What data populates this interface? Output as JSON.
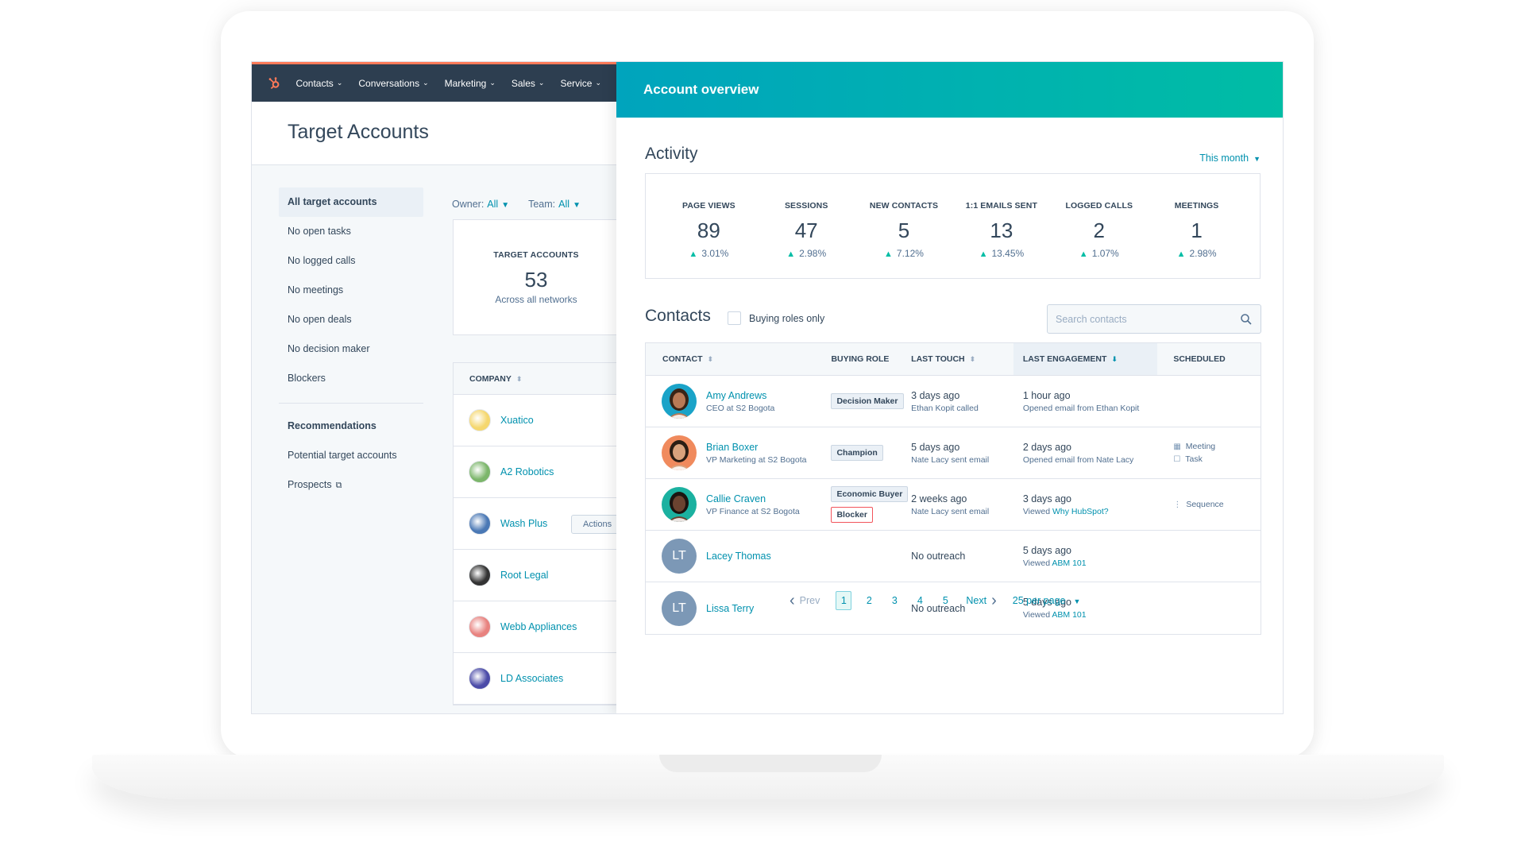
{
  "colors": {
    "accent": "#0091ae",
    "nav_bg": "#2d3e50",
    "brand_orange": "#ff7a59",
    "header_gradient": [
      "#00a4bd",
      "#00bda5"
    ],
    "up_arrow": "#00bda5",
    "blocker_border": "#f2545b"
  },
  "topnav": {
    "items": [
      {
        "label": "Contacts"
      },
      {
        "label": "Conversations"
      },
      {
        "label": "Marketing"
      },
      {
        "label": "Sales"
      },
      {
        "label": "Service"
      }
    ]
  },
  "target_accounts": {
    "title": "Target Accounts",
    "sidebar": {
      "items": [
        {
          "label": "All target accounts",
          "active": true
        },
        {
          "label": "No open tasks"
        },
        {
          "label": "No logged calls"
        },
        {
          "label": "No meetings"
        },
        {
          "label": "No open deals"
        },
        {
          "label": "No decision maker"
        },
        {
          "label": "Blockers"
        }
      ],
      "recommendations_heading": "Recommendations",
      "recommendations": [
        {
          "label": "Potential target accounts"
        },
        {
          "label": "Prospects",
          "icon": "external-link-icon"
        }
      ]
    },
    "filters": {
      "owner_label": "Owner:",
      "owner_value": "All",
      "team_label": "Team:",
      "team_value": "All"
    },
    "summary": {
      "label": "TARGET ACCOUNTS",
      "value": "53",
      "sub": "Across all networks"
    },
    "company_table": {
      "header": "COMPANY",
      "actions_label": "Actions",
      "rows": [
        {
          "name": "Xuatico",
          "color": "#f5d76e"
        },
        {
          "name": "A2 Robotics",
          "color": "#7cb66b"
        },
        {
          "name": "Wash Plus",
          "color": "#4a78b5"
        },
        {
          "name": "Root Legal",
          "color": "#333333"
        },
        {
          "name": "Webb Appliances",
          "color": "#e8827f"
        },
        {
          "name": "LD Associates",
          "color": "#4b4ba8"
        }
      ]
    }
  },
  "overview": {
    "title": "Account overview",
    "activity": {
      "title": "Activity",
      "range": "This month",
      "stats": [
        {
          "label": "PAGE VIEWS",
          "value": "89",
          "change": "3.01%"
        },
        {
          "label": "SESSIONS",
          "value": "47",
          "change": "2.98%"
        },
        {
          "label": "NEW CONTACTS",
          "value": "5",
          "change": "7.12%"
        },
        {
          "label": "1:1 EMAILS SENT",
          "value": "13",
          "change": "13.45%"
        },
        {
          "label": "LOGGED CALLS",
          "value": "2",
          "change": "1.07%"
        },
        {
          "label": "MEETINGS",
          "value": "1",
          "change": "2.98%"
        }
      ]
    },
    "contacts": {
      "title": "Contacts",
      "buying_roles_label": "Buying roles only",
      "search_placeholder": "Search contacts",
      "columns": {
        "contact": "CONTACT",
        "buying_role": "BUYING ROLE",
        "last_touch": "LAST TOUCH",
        "last_engagement": "LAST ENGAGEMENT",
        "scheduled": "SCHEDULED"
      },
      "rows": [
        {
          "name": "Amy Andrews",
          "title": "CEO at S2 Bogota",
          "avatar": {
            "type": "photo",
            "bg": "#1aa3c8",
            "skin": "#b97a56",
            "hair": "#3a2416"
          },
          "roles": [
            "Decision Maker"
          ],
          "blocker": "",
          "touch_main": "3 days ago",
          "touch_sub": "Ethan Kopit called",
          "engage_main": "1 hour ago",
          "engage_sub": "Opened email from Ethan Kopit",
          "engage_link": "",
          "scheduled": []
        },
        {
          "name": "Brian Boxer",
          "title": "VP Marketing at S2 Bogota",
          "avatar": {
            "type": "photo",
            "bg": "#f08a5d",
            "skin": "#d9a27d",
            "hair": "#2b1d14"
          },
          "roles": [
            "Champion"
          ],
          "blocker": "",
          "touch_main": "5 days ago",
          "touch_sub": "Nate Lacy sent email",
          "engage_main": "2 days ago",
          "engage_sub": "Opened email from Nate Lacy",
          "engage_link": "",
          "scheduled": [
            {
              "icon": "calendar-icon",
              "label": "Meeting"
            },
            {
              "icon": "task-icon",
              "label": "Task"
            }
          ]
        },
        {
          "name": "Callie Craven",
          "title": "VP Finance at S2 Bogota",
          "avatar": {
            "type": "photo",
            "bg": "#1bb1a0",
            "skin": "#6b4330",
            "hair": "#1c1410"
          },
          "roles": [
            "Economic Buyer"
          ],
          "blocker": "Blocker",
          "touch_main": "2 weeks ago",
          "touch_sub": "Nate Lacy sent email",
          "engage_main": "3 days ago",
          "engage_sub": "Viewed",
          "engage_link": "Why HubSpot?",
          "scheduled": [
            {
              "icon": "sequence-icon",
              "label": "Sequence"
            }
          ]
        },
        {
          "name": "Lacey Thomas",
          "title": "",
          "avatar": {
            "type": "initials",
            "initials": "LT"
          },
          "roles": [],
          "blocker": "",
          "touch_main": "No outreach",
          "touch_sub": "",
          "engage_main": "5 days ago",
          "engage_sub": "Viewed",
          "engage_link": "ABM 101",
          "scheduled": []
        },
        {
          "name": "Lissa Terry",
          "title": "",
          "avatar": {
            "type": "initials",
            "initials": "LT"
          },
          "roles": [],
          "blocker": "",
          "touch_main": "No outreach",
          "touch_sub": "",
          "engage_main": "5 days ago",
          "engage_sub": "Viewed",
          "engage_link": "ABM 101",
          "scheduled": []
        }
      ]
    },
    "pagination": {
      "prev": "Prev",
      "pages": [
        "1",
        "2",
        "3",
        "4",
        "5"
      ],
      "current": "1",
      "next": "Next",
      "per_page": "25 per page"
    }
  }
}
